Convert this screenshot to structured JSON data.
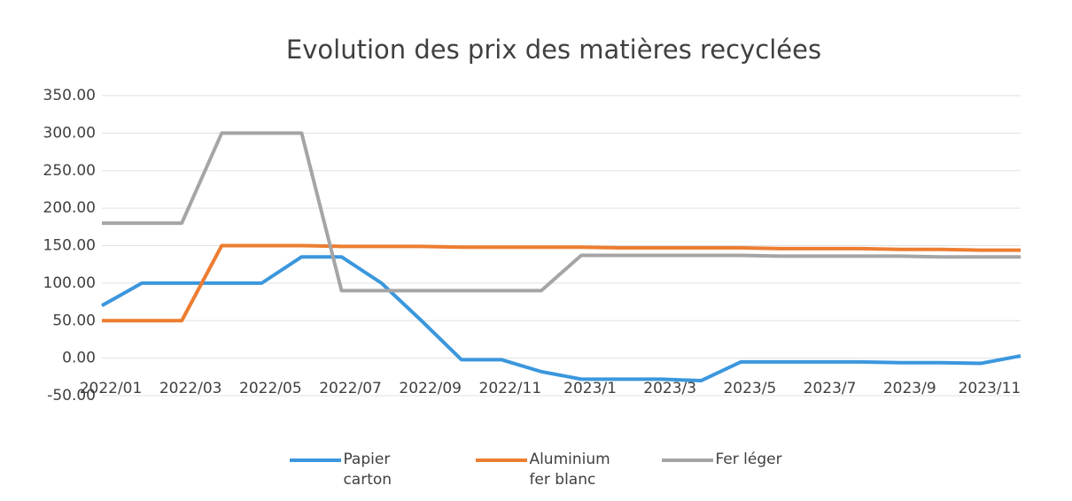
{
  "chart_data": {
    "type": "line",
    "title": "Evolution des prix des matières recyclées",
    "categories": [
      "2022/01",
      null,
      "2022/03",
      null,
      "2022/05",
      null,
      "2022/07",
      null,
      "2022/09",
      null,
      "2022/11",
      null,
      "2023/1",
      null,
      "2023/3",
      null,
      "2023/5",
      null,
      "2023/7",
      null,
      "2023/9",
      null,
      "2023/11",
      null
    ],
    "series": [
      {
        "name": "Papier carton",
        "color": "#3b97dd",
        "values": [
          70,
          100,
          100,
          100,
          100,
          135,
          135,
          100,
          50,
          -2,
          -2,
          -18,
          -28,
          -28,
          -28,
          -30,
          -5,
          -5,
          -5,
          -5,
          -6,
          -6,
          -7,
          3
        ]
      },
      {
        "name": "Aluminium fer blanc",
        "color": "#ed7d31",
        "values": [
          50,
          50,
          50,
          150,
          150,
          150,
          149,
          149,
          149,
          148,
          148,
          148,
          148,
          147,
          147,
          147,
          147,
          146,
          146,
          146,
          145,
          145,
          144,
          144
        ]
      },
      {
        "name": "Fer léger",
        "color": "#a5a5a5",
        "values": [
          180,
          180,
          180,
          300,
          300,
          300,
          90,
          90,
          90,
          90,
          90,
          90,
          137,
          137,
          137,
          137,
          137,
          136,
          136,
          136,
          136,
          135,
          135,
          135
        ]
      }
    ],
    "ylim": [
      -50,
      350
    ],
    "yticks": [
      {
        "value": -50,
        "label": "-50.00"
      },
      {
        "value": 0,
        "label": "0.00"
      },
      {
        "value": 50,
        "label": "50.00"
      },
      {
        "value": 100,
        "label": "100.00"
      },
      {
        "value": 150,
        "label": "150.00"
      },
      {
        "value": 200,
        "label": "200.00"
      },
      {
        "value": 250,
        "label": "250.00"
      },
      {
        "value": 300,
        "label": "300.00"
      },
      {
        "value": 350,
        "label": "350.00"
      }
    ],
    "grid": true,
    "legend": "bottom"
  }
}
